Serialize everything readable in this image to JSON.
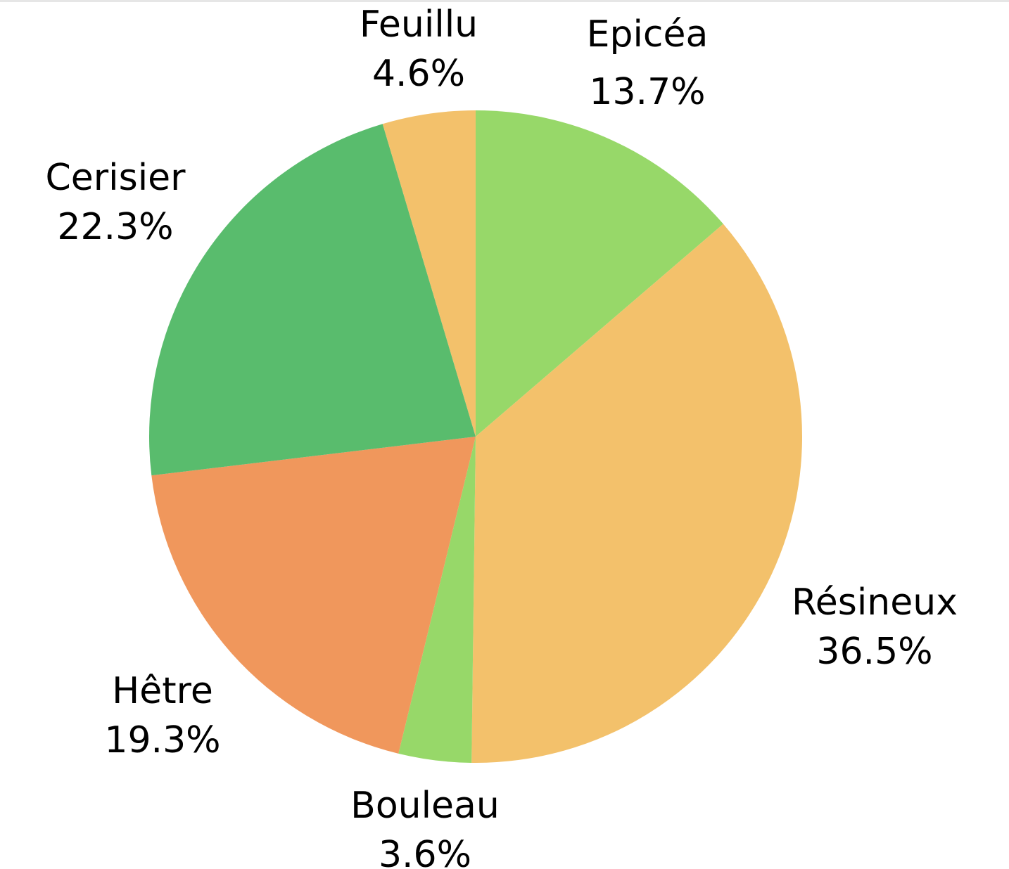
{
  "chart_data": {
    "type": "pie",
    "start_angle_deg": 0,
    "direction": "clockwise",
    "slices": [
      {
        "label": "Epicéa",
        "pct_label": "13.7%",
        "value": 13.7,
        "color": "#97d869"
      },
      {
        "label": "Résineux",
        "pct_label": "36.5%",
        "value": 36.5,
        "color": "#f3c16b"
      },
      {
        "label": "Bouleau",
        "pct_label": "3.6%",
        "value": 3.6,
        "color": "#97d869"
      },
      {
        "label": "Hêtre",
        "pct_label": "19.3%",
        "value": 19.3,
        "color": "#f0975c"
      },
      {
        "label": "Cerisier",
        "pct_label": "22.3%",
        "value": 22.3,
        "color": "#59bc6d"
      },
      {
        "label": "Feuillu",
        "pct_label": "4.6%",
        "value": 4.6,
        "color": "#f3c16b"
      }
    ]
  }
}
